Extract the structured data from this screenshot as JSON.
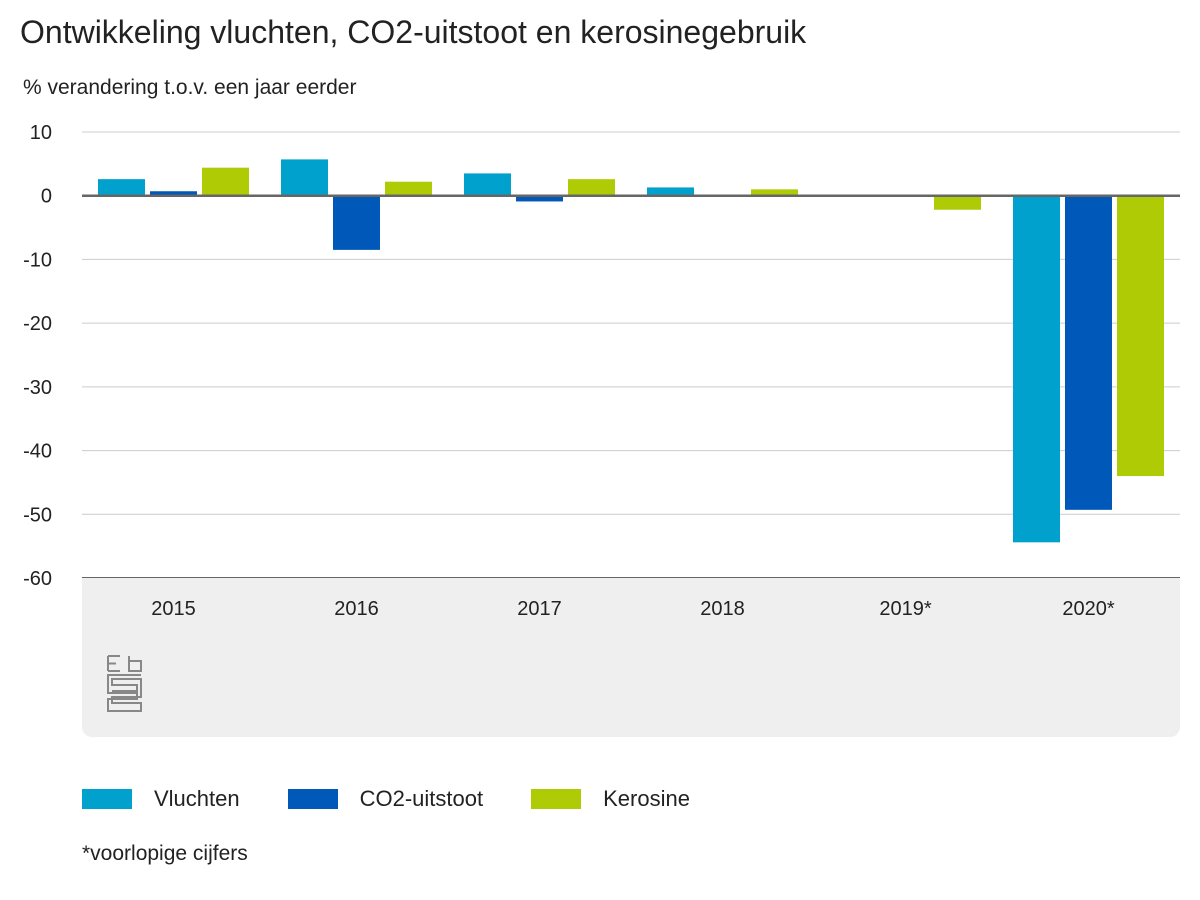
{
  "title": "Ontwikkeling vluchten, CO2-uitstoot en kerosinegebruik",
  "subtitle": "% verandering t.o.v. een jaar eerder",
  "footnote": "*voorlopige cijfers",
  "colors": {
    "vluchten": "#00a1cd",
    "co2": "#0058b8",
    "kerosine": "#afcb05",
    "grid": "#cccccc",
    "axis": "#666666",
    "panel": "#efefef",
    "logo": "#888888"
  },
  "chart_data": {
    "type": "bar",
    "categories": [
      "2015",
      "2016",
      "2017",
      "2018",
      "2019*",
      "2020*"
    ],
    "series": [
      {
        "name": "Vluchten",
        "color": "#00a1cd",
        "values": [
          2.6,
          5.7,
          3.5,
          1.3,
          0,
          -54.4
        ]
      },
      {
        "name": "CO2-uitstoot",
        "color": "#0058b8",
        "values": [
          0.7,
          -8.5,
          -0.9,
          0,
          0,
          -49.3
        ]
      },
      {
        "name": "Kerosine",
        "color": "#afcb05",
        "values": [
          4.4,
          2.2,
          2.6,
          1.0,
          -2.2,
          -44.0
        ]
      }
    ],
    "yticks": [
      10,
      0,
      -10,
      -20,
      -30,
      -40,
      -50,
      -60
    ],
    "ylim": [
      -60,
      10
    ],
    "xlabel": "",
    "ylabel": "",
    "legend_position": "bottom",
    "grid": true
  }
}
